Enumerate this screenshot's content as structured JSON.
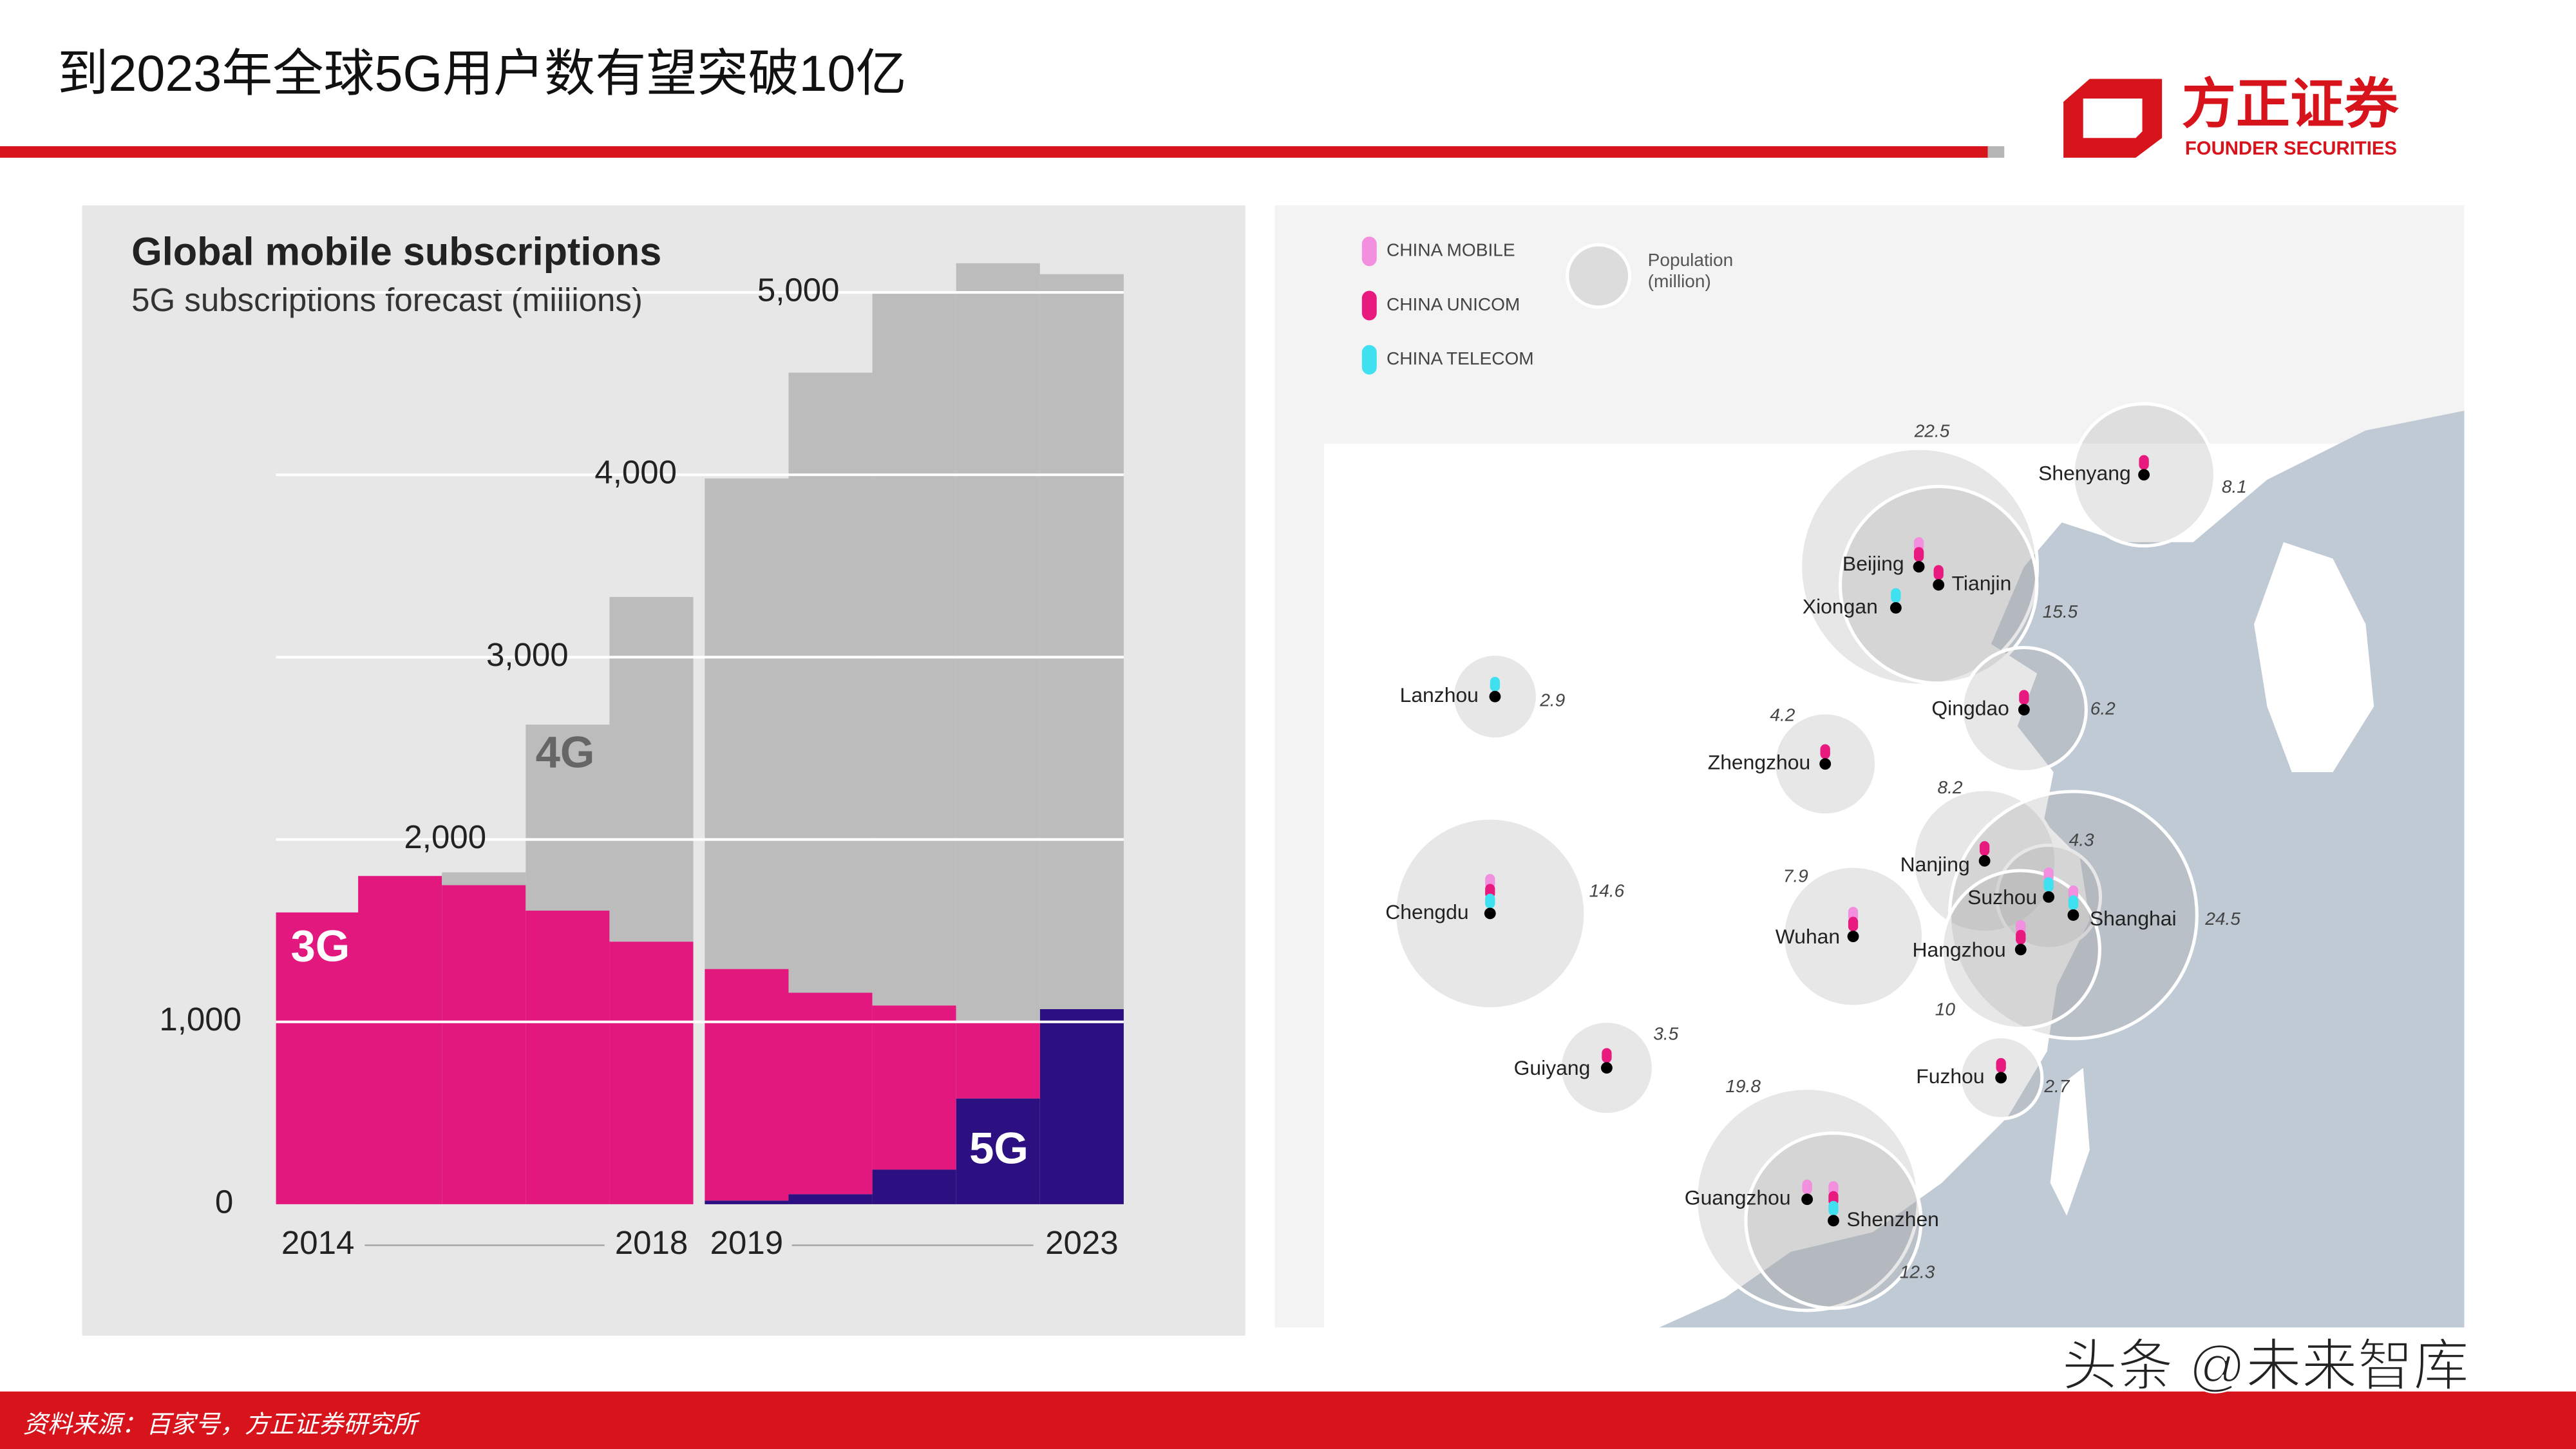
{
  "header": {
    "title": "到2023年全球5G用户数有望突破10亿",
    "logo_cn": "方正证券",
    "logo_en": "FOUNDER SECURITIES"
  },
  "footer": {
    "source": "资料来源：百家号，方正证券研究所",
    "watermark": "头条 @未来智库"
  },
  "chart_data": {
    "type": "bar",
    "stacked": true,
    "title": "Global mobile subscriptions",
    "subtitle": "5G subscriptions forecast (millions)",
    "categories": [
      "2014",
      null,
      null,
      null,
      "2018",
      "2019",
      null,
      null,
      null,
      "2023"
    ],
    "series": [
      {
        "name": "5G",
        "color": "#2c0f80",
        "values": [
          0,
          0,
          0,
          0,
          0,
          20,
          55,
          190,
          580,
          1070
        ]
      },
      {
        "name": "3G",
        "color": "#e2187f",
        "values": [
          1600,
          1800,
          1750,
          1610,
          1440,
          1270,
          1105,
          900,
          420,
          0
        ]
      },
      {
        "name": "4G",
        "color": "#bcbcbc",
        "values": [
          0,
          0,
          70,
          1020,
          1890,
          2690,
          3400,
          3910,
          4160,
          4030
        ]
      }
    ],
    "ylim": [
      0,
      5200
    ],
    "yticks": [
      0,
      {
        "value": 1000,
        "label": "1,000"
      },
      {
        "value": 2000,
        "label": "2,000"
      },
      {
        "value": 3000,
        "label": "3,000"
      },
      {
        "value": 4000,
        "label": "4,000"
      },
      {
        "value": 5000,
        "label": "5,000"
      }
    ],
    "grid": true
  },
  "map": {
    "legend": [
      {
        "name": "CHINA MOBILE",
        "color": "#f28fdf"
      },
      {
        "name": "CHINA UNICOM",
        "color": "#e8197f"
      },
      {
        "name": "CHINA TELECOM",
        "color": "#3fe0ef"
      }
    ],
    "population_title": "Population",
    "population_unit": "(million)",
    "cities": [
      {
        "name": "Shenyang",
        "population": 8.1
      },
      {
        "name": "Beijing",
        "population": 22.5
      },
      {
        "name": "Tianjin",
        "population": 15.5
      },
      {
        "name": "Xiongan"
      },
      {
        "name": "Lanzhou",
        "population": 2.9
      },
      {
        "name": "Qingdao",
        "population": 6.2
      },
      {
        "name": "Zhengzhou",
        "population": 4.2
      },
      {
        "name": "Chengdu",
        "population": 14.6
      },
      {
        "name": "Nanjing",
        "population": 8.2
      },
      {
        "name": "Suzhou",
        "population": 4.3
      },
      {
        "name": "Shanghai",
        "population": 24.5
      },
      {
        "name": "Wuhan",
        "population": 7.9
      },
      {
        "name": "Hangzhou",
        "population": 10
      },
      {
        "name": "Guiyang",
        "population": 3.5
      },
      {
        "name": "Fuzhou",
        "population": 2.7
      },
      {
        "name": "Guangzhou",
        "population": 19.8
      },
      {
        "name": "Shenzhen",
        "population": 12.3
      }
    ]
  }
}
